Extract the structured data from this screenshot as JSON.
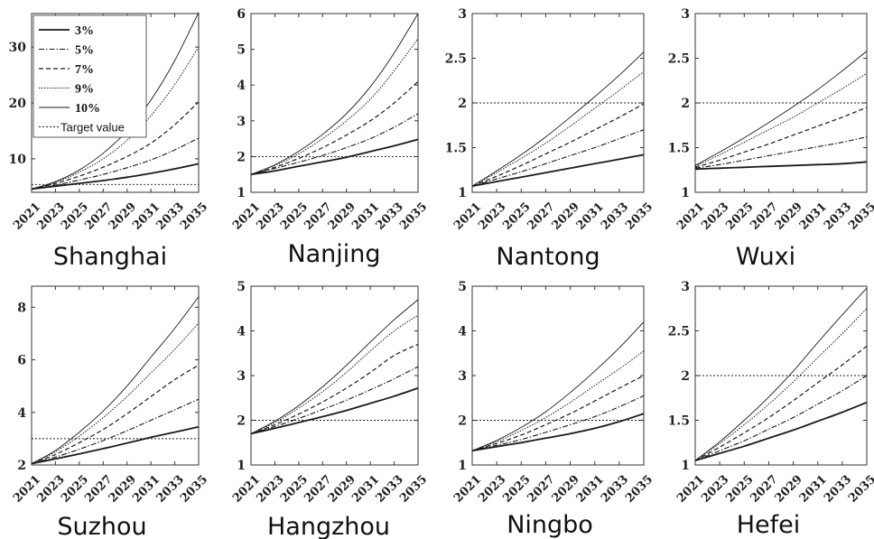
{
  "chart_data": [
    {
      "type": "line",
      "title": "Shanghai",
      "x": [
        2021,
        2023,
        2025,
        2027,
        2029,
        2031,
        2033,
        2035
      ],
      "x_tick_labels": [
        "2021",
        "2023",
        "2025",
        "2027",
        "2029",
        "2031",
        "2033",
        "2035"
      ],
      "ylim": [
        4,
        36
      ],
      "yticks": [
        10,
        20,
        30
      ],
      "target_value": 5.4,
      "series": [
        {
          "name": "3%",
          "values": [
            4.6,
            5.1,
            5.6,
            6.1,
            6.7,
            7.4,
            8.2,
            9.1
          ]
        },
        {
          "name": "5%",
          "values": [
            4.6,
            5.3,
            6.2,
            7.2,
            8.4,
            9.8,
            11.6,
            13.7
          ]
        },
        {
          "name": "7%",
          "values": [
            4.6,
            5.6,
            6.9,
            8.5,
            10.4,
            12.8,
            16.1,
            20.2
          ]
        },
        {
          "name": "9%",
          "values": [
            4.6,
            5.8,
            7.6,
            10.0,
            13.3,
            17.7,
            23.3,
            30.0
          ]
        },
        {
          "name": "10%",
          "values": [
            4.6,
            5.9,
            8.0,
            11.0,
            15.0,
            20.5,
            27.6,
            36.2
          ]
        }
      ]
    },
    {
      "type": "line",
      "title": "Nanjing",
      "x": [
        2021,
        2023,
        2025,
        2027,
        2029,
        2031,
        2033,
        2035
      ],
      "x_tick_labels": [
        "2021",
        "2023",
        "2025",
        "2027",
        "2029",
        "2031",
        "2033",
        "2035"
      ],
      "ylim": [
        1,
        6
      ],
      "yticks": [
        1,
        2,
        3,
        4,
        5,
        6
      ],
      "target_value": 2,
      "series": [
        {
          "name": "3%",
          "values": [
            1.5,
            1.6,
            1.73,
            1.85,
            1.98,
            2.14,
            2.3,
            2.48
          ]
        },
        {
          "name": "5%",
          "values": [
            1.5,
            1.67,
            1.84,
            2.03,
            2.25,
            2.5,
            2.82,
            3.2
          ]
        },
        {
          "name": "7%",
          "values": [
            1.5,
            1.7,
            1.95,
            2.25,
            2.6,
            3.0,
            3.5,
            4.1
          ]
        },
        {
          "name": "9%",
          "values": [
            1.5,
            1.75,
            2.08,
            2.5,
            3.0,
            3.6,
            4.4,
            5.3
          ]
        },
        {
          "name": "10%",
          "values": [
            1.5,
            1.77,
            2.15,
            2.62,
            3.2,
            3.95,
            4.9,
            6.0
          ]
        }
      ]
    },
    {
      "type": "line",
      "title": "Nantong",
      "x": [
        2021,
        2023,
        2025,
        2027,
        2029,
        2031,
        2033,
        2035
      ],
      "x_tick_labels": [
        "2021",
        "2023",
        "2025",
        "2027",
        "2029",
        "2031",
        "2033",
        "2035"
      ],
      "ylim": [
        1,
        3
      ],
      "yticks": [
        1,
        1.5,
        2,
        2.5,
        3
      ],
      "target_value": 2,
      "series": [
        {
          "name": "3%",
          "values": [
            1.07,
            1.12,
            1.17,
            1.22,
            1.27,
            1.32,
            1.37,
            1.42
          ]
        },
        {
          "name": "5%",
          "values": [
            1.07,
            1.15,
            1.23,
            1.32,
            1.41,
            1.5,
            1.6,
            1.7
          ]
        },
        {
          "name": "7%",
          "values": [
            1.07,
            1.18,
            1.3,
            1.43,
            1.56,
            1.7,
            1.84,
            1.99
          ]
        },
        {
          "name": "9%",
          "values": [
            1.07,
            1.22,
            1.38,
            1.55,
            1.74,
            1.94,
            2.14,
            2.35
          ]
        },
        {
          "name": "10%",
          "values": [
            1.07,
            1.24,
            1.42,
            1.62,
            1.84,
            2.07,
            2.31,
            2.57
          ]
        }
      ]
    },
    {
      "type": "line",
      "title": "Wuxi",
      "x": [
        2021,
        2023,
        2025,
        2027,
        2029,
        2031,
        2033,
        2035
      ],
      "x_tick_labels": [
        "2021",
        "2023",
        "2025",
        "2027",
        "2029",
        "2031",
        "2033",
        "2035"
      ],
      "ylim": [
        1,
        3
      ],
      "yticks": [
        1,
        1.5,
        2,
        2.5,
        3
      ],
      "target_value": 2,
      "series": [
        {
          "name": "3%",
          "values": [
            1.26,
            1.27,
            1.28,
            1.29,
            1.3,
            1.31,
            1.32,
            1.34
          ]
        },
        {
          "name": "5%",
          "values": [
            1.27,
            1.31,
            1.36,
            1.41,
            1.46,
            1.51,
            1.56,
            1.62
          ]
        },
        {
          "name": "7%",
          "values": [
            1.28,
            1.36,
            1.45,
            1.54,
            1.64,
            1.74,
            1.84,
            1.95
          ]
        },
        {
          "name": "9%",
          "values": [
            1.29,
            1.42,
            1.56,
            1.7,
            1.84,
            2.0,
            2.16,
            2.33
          ]
        },
        {
          "name": "10%",
          "values": [
            1.3,
            1.45,
            1.61,
            1.78,
            1.96,
            2.15,
            2.36,
            2.58
          ]
        }
      ]
    },
    {
      "type": "line",
      "title": "Suzhou",
      "x": [
        2021,
        2023,
        2025,
        2027,
        2029,
        2031,
        2033,
        2035
      ],
      "x_tick_labels": [
        "2021",
        "2023",
        "2025",
        "2027",
        "2029",
        "2031",
        "2033",
        "2035"
      ],
      "ylim": [
        2,
        8.8
      ],
      "yticks": [
        2,
        4,
        6,
        8
      ],
      "target_value": 3,
      "series": [
        {
          "name": "3%",
          "values": [
            2.05,
            2.23,
            2.42,
            2.62,
            2.83,
            3.05,
            3.25,
            3.45
          ]
        },
        {
          "name": "5%",
          "values": [
            2.05,
            2.3,
            2.6,
            2.93,
            3.3,
            3.7,
            4.1,
            4.5
          ]
        },
        {
          "name": "7%",
          "values": [
            2.05,
            2.4,
            2.85,
            3.35,
            3.95,
            4.6,
            5.25,
            5.8
          ]
        },
        {
          "name": "9%",
          "values": [
            2.05,
            2.5,
            3.1,
            3.8,
            4.6,
            5.5,
            6.4,
            7.4
          ]
        },
        {
          "name": "10%",
          "values": [
            2.05,
            2.55,
            3.25,
            4.05,
            5.0,
            6.1,
            7.2,
            8.4
          ]
        }
      ]
    },
    {
      "type": "line",
      "title": "Hangzhou",
      "x": [
        2021,
        2023,
        2025,
        2027,
        2029,
        2031,
        2033,
        2035
      ],
      "x_tick_labels": [
        "2021",
        "2023",
        "2025",
        "2027",
        "2029",
        "2031",
        "2033",
        "2035"
      ],
      "ylim": [
        1,
        5
      ],
      "yticks": [
        1,
        2,
        3,
        4,
        5
      ],
      "target_value": 2,
      "series": [
        {
          "name": "3%",
          "values": [
            1.7,
            1.82,
            1.95,
            2.08,
            2.22,
            2.38,
            2.54,
            2.72
          ]
        },
        {
          "name": "5%",
          "values": [
            1.7,
            1.86,
            2.04,
            2.24,
            2.45,
            2.68,
            2.93,
            3.2
          ]
        },
        {
          "name": "7%",
          "values": [
            1.7,
            1.9,
            2.14,
            2.41,
            2.72,
            3.07,
            3.45,
            3.7
          ]
        },
        {
          "name": "9%",
          "values": [
            1.7,
            1.95,
            2.27,
            2.64,
            3.07,
            3.55,
            4.0,
            4.35
          ]
        },
        {
          "name": "10%",
          "values": [
            1.7,
            1.98,
            2.33,
            2.75,
            3.23,
            3.75,
            4.25,
            4.7
          ]
        }
      ]
    },
    {
      "type": "line",
      "title": "Ningbo",
      "x": [
        2021,
        2023,
        2025,
        2027,
        2029,
        2031,
        2033,
        2035
      ],
      "x_tick_labels": [
        "2021",
        "2023",
        "2025",
        "2027",
        "2029",
        "2031",
        "2033",
        "2035"
      ],
      "ylim": [
        1,
        5
      ],
      "yticks": [
        1,
        2,
        3,
        4,
        5
      ],
      "target_value": 2,
      "series": [
        {
          "name": "3%",
          "values": [
            1.32,
            1.41,
            1.5,
            1.6,
            1.7,
            1.82,
            1.97,
            2.15
          ]
        },
        {
          "name": "5%",
          "values": [
            1.32,
            1.44,
            1.57,
            1.73,
            1.9,
            2.08,
            2.3,
            2.55
          ]
        },
        {
          "name": "7%",
          "values": [
            1.32,
            1.48,
            1.67,
            1.9,
            2.15,
            2.43,
            2.72,
            3.0
          ]
        },
        {
          "name": "9%",
          "values": [
            1.32,
            1.52,
            1.77,
            2.06,
            2.4,
            2.78,
            3.15,
            3.55
          ]
        },
        {
          "name": "10%",
          "values": [
            1.32,
            1.55,
            1.84,
            2.19,
            2.62,
            3.1,
            3.62,
            4.2
          ]
        }
      ]
    },
    {
      "type": "line",
      "title": "Hefei",
      "x": [
        2021,
        2023,
        2025,
        2027,
        2029,
        2031,
        2033,
        2035
      ],
      "x_tick_labels": [
        "2021",
        "2023",
        "2025",
        "2027",
        "2029",
        "2031",
        "2033",
        "2035"
      ],
      "ylim": [
        1,
        3
      ],
      "yticks": [
        1,
        1.5,
        2,
        2.5,
        3
      ],
      "target_value": 2,
      "series": [
        {
          "name": "3%",
          "values": [
            1.05,
            1.13,
            1.21,
            1.3,
            1.39,
            1.49,
            1.59,
            1.7
          ]
        },
        {
          "name": "5%",
          "values": [
            1.05,
            1.16,
            1.27,
            1.4,
            1.53,
            1.68,
            1.83,
            2.0
          ]
        },
        {
          "name": "7%",
          "values": [
            1.05,
            1.2,
            1.36,
            1.53,
            1.72,
            1.92,
            2.12,
            2.33
          ]
        },
        {
          "name": "9%",
          "values": [
            1.05,
            1.24,
            1.45,
            1.68,
            1.93,
            2.2,
            2.47,
            2.75
          ]
        },
        {
          "name": "10%",
          "values": [
            1.05,
            1.26,
            1.5,
            1.76,
            2.05,
            2.37,
            2.68,
            2.98
          ]
        }
      ]
    }
  ],
  "legend": {
    "entries": [
      {
        "label": "3%",
        "style": "solid-thick"
      },
      {
        "label": "5%",
        "style": "dashdot"
      },
      {
        "label": "7%",
        "style": "dashed"
      },
      {
        "label": "9%",
        "style": "dotted"
      },
      {
        "label": "10%",
        "style": "solid-thin"
      },
      {
        "label": "Target value",
        "style": "dotted-fine"
      }
    ]
  },
  "colors": {
    "line": "#1a1a1a",
    "axis": "#333333",
    "background": "#ffffff"
  }
}
